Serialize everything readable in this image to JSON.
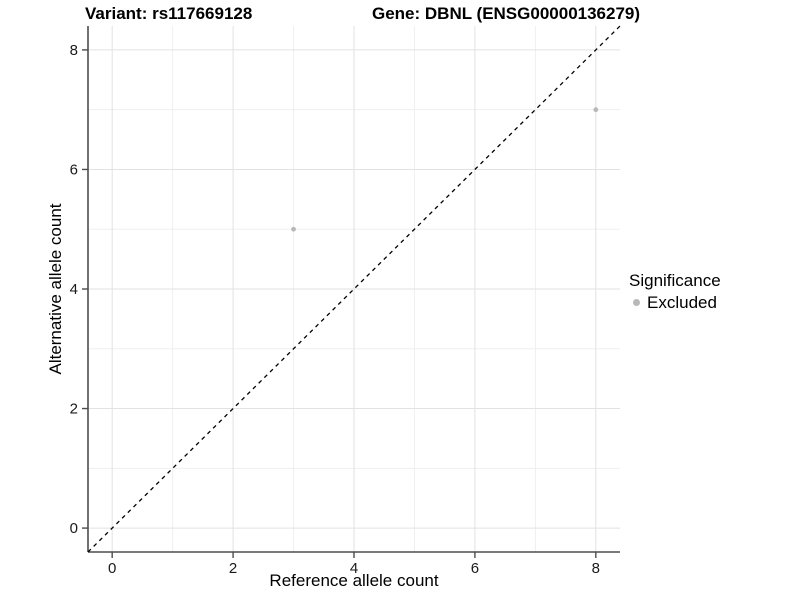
{
  "chart_data": {
    "type": "scatter",
    "title_left": "Variant: rs117669128",
    "title_right": "Gene: DBNL (ENSG00000136279)",
    "xlabel": "Reference allele count",
    "ylabel": "Alternative allele count",
    "xlim": [
      -0.4,
      8.4
    ],
    "ylim": [
      -0.4,
      8.4
    ],
    "xticks": [
      0,
      2,
      4,
      6,
      8
    ],
    "yticks": [
      0,
      2,
      4,
      6,
      8
    ],
    "xticks_minor": [
      1,
      3,
      5,
      7
    ],
    "yticks_minor": [
      1,
      3,
      5,
      7
    ],
    "grid": true,
    "series": [
      {
        "name": "Excluded",
        "color": "#b8b8b8",
        "points": [
          [
            3,
            5
          ],
          [
            8,
            7
          ]
        ]
      }
    ],
    "reference_line": {
      "type": "identity",
      "slope": 1,
      "intercept": 0,
      "linetype": "dashed",
      "color": "#000000"
    },
    "legend": {
      "title": "Significance",
      "position": "right",
      "items": [
        {
          "label": "Excluded",
          "color": "#b8b8b8"
        }
      ]
    }
  },
  "style": {
    "background": "#ffffff",
    "grid_major": "#e2e2e2",
    "grid_minor": "#efefef",
    "axis_color": "#4d4d4d",
    "tick_label_color": "#1a1a1a",
    "point_color": "#b8b8b8",
    "dashed_line_color": "#000000"
  }
}
